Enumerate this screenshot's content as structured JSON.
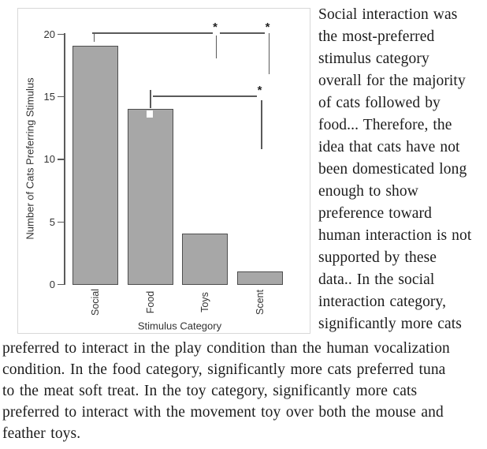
{
  "figure": {
    "chart_data": {
      "type": "bar",
      "title": "",
      "categories": [
        "Social",
        "Food",
        "Toys",
        "Scent"
      ],
      "values": [
        19,
        14,
        4,
        1
      ],
      "xlabel": "Stimulus Category",
      "ylabel": "Number of Cats Preferring Stimulus",
      "ylim": [
        0,
        20
      ],
      "yticks": [
        0,
        5,
        10,
        15,
        20
      ],
      "grid": "off",
      "legend": "none",
      "bar_color": "#a7a7a7",
      "bar_border_color": "#4e4e4e",
      "axis_color": "#5a5a5a",
      "error_bars": [
        {
          "category": "Social"
        },
        {
          "category": "Food"
        }
      ],
      "significance": [
        {
          "compares": "Social vs Toys",
          "label": "*"
        },
        {
          "compares": "Social vs Scent",
          "label": "*"
        },
        {
          "compares": "Food vs Scent",
          "label": "*"
        }
      ]
    }
  },
  "text": {
    "right_lines": [
      "Social interaction was",
      "the most-preferred",
      "stimulus category",
      "overall for the majority",
      "of cats followed by",
      "food... Therefore, the",
      "idea that cats have not",
      "been domesticated long",
      "enough to show",
      "preference toward",
      "human interaction is not",
      "supported by these",
      "data.. In the social",
      "interaction category,",
      "significantly more cats"
    ],
    "bottom_lines": [
      "preferred to interact in the play condition than the human vocalization",
      "condition. In the food category, significantly more cats preferred tuna",
      "to the meat soft treat. In the toy category, significantly more cats",
      "preferred to interact with the movement toy over both the mouse and",
      "feather toys."
    ]
  }
}
